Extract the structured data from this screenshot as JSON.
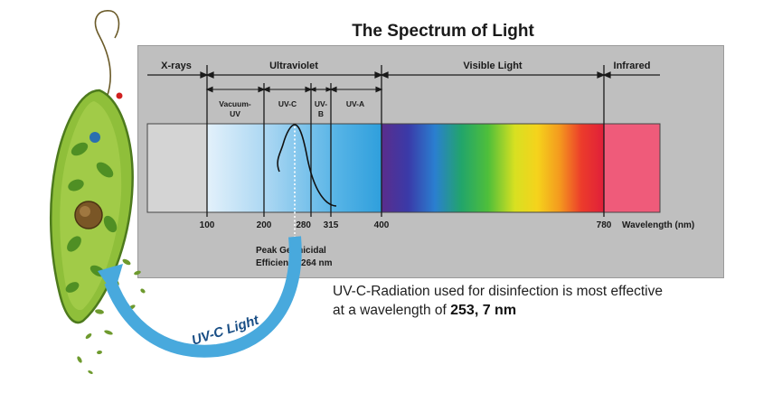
{
  "title": "The Spectrum of Light",
  "regions": {
    "xrays": "X-rays",
    "ultraviolet": "Ultraviolet",
    "visible": "Visible Light",
    "infrared": "Infrared"
  },
  "uv_bands": {
    "vacuum_uv_line1": "Vacuum-",
    "vacuum_uv_line2": "UV",
    "uvc": "UV-C",
    "uvb_line1": "UV-",
    "uvb_line2": "B",
    "uva": "UV-A"
  },
  "axis": {
    "ticks": [
      "100",
      "200",
      "280",
      "315",
      "400",
      "780"
    ],
    "label": "Wavelength (nm)"
  },
  "peak": {
    "line1": "Peak Germicidal",
    "line2": "Efficiency 264 nm"
  },
  "arrow_label": "UV-C Light",
  "caption": {
    "line1": "UV-C-Radiation used for disinfection is most effective",
    "line2_prefix": "at a wavelength of",
    "value": "253, 7 nm"
  },
  "colors": {
    "panel": "#bfbfbf",
    "xray_band": "#d4d4d4",
    "uv_band": "#3fa7e0",
    "infrared_band": "#ef5b7a",
    "arrow": "#48a9dd"
  }
}
